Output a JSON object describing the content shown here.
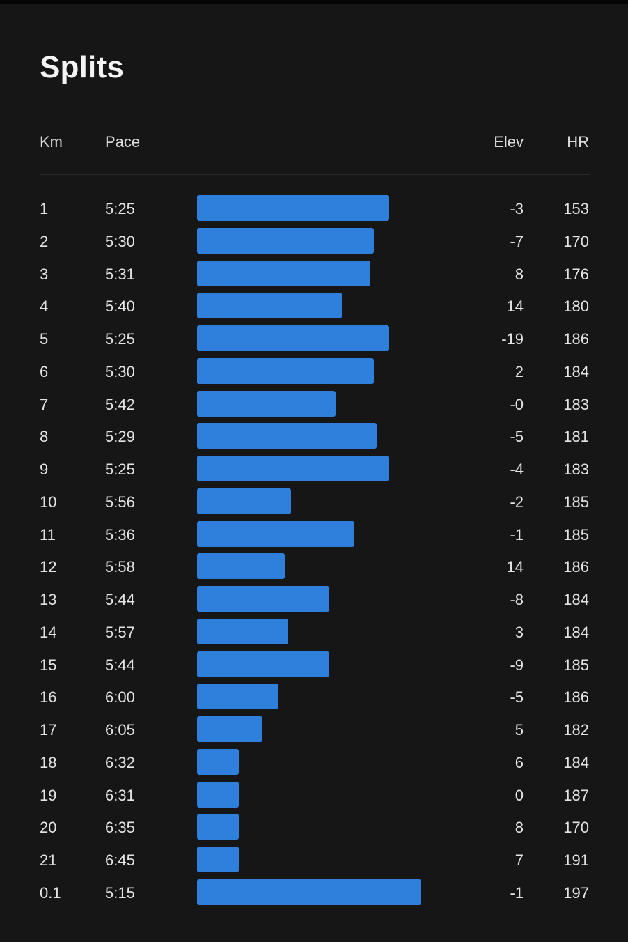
{
  "title": "Splits",
  "columns": {
    "km": "Km",
    "pace": "Pace",
    "elev": "Elev",
    "hr": "HR"
  },
  "colors": {
    "background": "#161616",
    "bar": "#2f7fdd",
    "text": "#e4e4e4"
  },
  "splits": [
    {
      "km": "1",
      "pace": "5:25",
      "elev": "-3",
      "hr": "153"
    },
    {
      "km": "2",
      "pace": "5:30",
      "elev": "-7",
      "hr": "170"
    },
    {
      "km": "3",
      "pace": "5:31",
      "elev": "8",
      "hr": "176"
    },
    {
      "km": "4",
      "pace": "5:40",
      "elev": "14",
      "hr": "180"
    },
    {
      "km": "5",
      "pace": "5:25",
      "elev": "-19",
      "hr": "186"
    },
    {
      "km": "6",
      "pace": "5:30",
      "elev": "2",
      "hr": "184"
    },
    {
      "km": "7",
      "pace": "5:42",
      "elev": "-0",
      "hr": "183"
    },
    {
      "km": "8",
      "pace": "5:29",
      "elev": "-5",
      "hr": "181"
    },
    {
      "km": "9",
      "pace": "5:25",
      "elev": "-4",
      "hr": "183"
    },
    {
      "km": "10",
      "pace": "5:56",
      "elev": "-2",
      "hr": "185"
    },
    {
      "km": "11",
      "pace": "5:36",
      "elev": "-1",
      "hr": "185"
    },
    {
      "km": "12",
      "pace": "5:58",
      "elev": "14",
      "hr": "186"
    },
    {
      "km": "13",
      "pace": "5:44",
      "elev": "-8",
      "hr": "184"
    },
    {
      "km": "14",
      "pace": "5:57",
      "elev": "3",
      "hr": "184"
    },
    {
      "km": "15",
      "pace": "5:44",
      "elev": "-9",
      "hr": "185"
    },
    {
      "km": "16",
      "pace": "6:00",
      "elev": "-5",
      "hr": "186"
    },
    {
      "km": "17",
      "pace": "6:05",
      "elev": "5",
      "hr": "182"
    },
    {
      "km": "18",
      "pace": "6:32",
      "elev": "6",
      "hr": "184"
    },
    {
      "km": "19",
      "pace": "6:31",
      "elev": "0",
      "hr": "187"
    },
    {
      "km": "20",
      "pace": "6:35",
      "elev": "8",
      "hr": "170"
    },
    {
      "km": "21",
      "pace": "6:45",
      "elev": "7",
      "hr": "191"
    },
    {
      "km": "0.1",
      "pace": "5:15",
      "elev": "-1",
      "hr": "197"
    }
  ]
}
